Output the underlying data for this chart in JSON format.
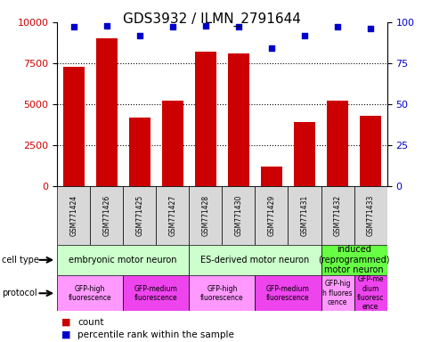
{
  "title": "GDS3932 / ILMN_2791644",
  "samples": [
    "GSM771424",
    "GSM771426",
    "GSM771425",
    "GSM771427",
    "GSM771428",
    "GSM771430",
    "GSM771429",
    "GSM771431",
    "GSM771432",
    "GSM771433"
  ],
  "counts": [
    7300,
    9000,
    4200,
    5200,
    8200,
    8100,
    1200,
    3900,
    5200,
    4300
  ],
  "percentiles": [
    97,
    98,
    92,
    97,
    98,
    97,
    84,
    92,
    97,
    96
  ],
  "bar_color": "#cc0000",
  "dot_color": "#0000cc",
  "ylim_left": [
    0,
    10000
  ],
  "yticks_left": [
    0,
    2500,
    5000,
    7500,
    10000
  ],
  "ylim_right": [
    0,
    100
  ],
  "yticks_right": [
    0,
    25,
    50,
    75,
    100
  ],
  "cell_type_groups": [
    {
      "label": "embryonic motor neuron",
      "start": 0,
      "end": 3,
      "color": "#ccffcc"
    },
    {
      "label": "ES-derived motor neuron",
      "start": 4,
      "end": 7,
      "color": "#ccffcc"
    },
    {
      "label": "induced\n(reprogrammed)\nmotor neuron",
      "start": 8,
      "end": 9,
      "color": "#66ff44"
    }
  ],
  "protocol_groups": [
    {
      "label": "GFP-high\nfluorescence",
      "start": 0,
      "end": 1,
      "color": "#ff99ff"
    },
    {
      "label": "GFP-medium\nfluorescence",
      "start": 2,
      "end": 3,
      "color": "#ee44ee"
    },
    {
      "label": "GFP-high\nfluorescence",
      "start": 4,
      "end": 5,
      "color": "#ff99ff"
    },
    {
      "label": "GFP-medium\nfluorescence",
      "start": 6,
      "end": 7,
      "color": "#ee44ee"
    },
    {
      "label": "GFP-hig\nh fluores\ncence",
      "start": 8,
      "end": 8,
      "color": "#ff99ff"
    },
    {
      "label": "GFP-me\ndium\nfluoresc\nence",
      "start": 9,
      "end": 9,
      "color": "#ee44ee"
    }
  ],
  "row_label_cell_type": "cell type",
  "row_label_protocol": "protocol",
  "legend_count": "count",
  "legend_percentile": "percentile rank within the sample",
  "background_color": "#ffffff",
  "title_fontsize": 11,
  "tick_fontsize": 8,
  "sample_fontsize": 5.5,
  "annotation_fontsize": 7,
  "legend_fontsize": 7.5
}
